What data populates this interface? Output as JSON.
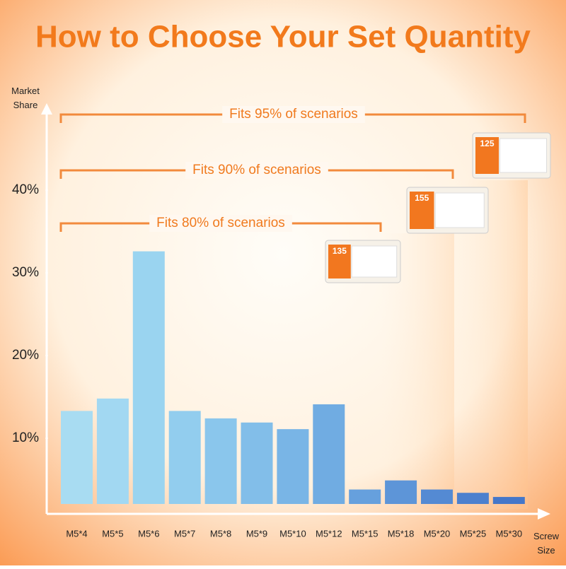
{
  "chart_data": {
    "type": "bar",
    "title": "How to Choose Your Set Quantity",
    "y_label": "Market Share",
    "x_label": "Screw Size",
    "categories": [
      "M5*4",
      "M5*5",
      "M5*6",
      "M5*7",
      "M5*8",
      "M5*9",
      "M5*10",
      "M5*12",
      "M5*15",
      "M5*18",
      "M5*20",
      "M5*25",
      "M5*30"
    ],
    "values": [
      13.3,
      14.8,
      32.6,
      13.3,
      12.4,
      11.9,
      11.1,
      14.1,
      3.8,
      4.9,
      3.8,
      3.4,
      2.9
    ],
    "colors": [
      "#a8dcf2",
      "#a2d8f2",
      "#9ad4f0",
      "#92cdee",
      "#8ac6ec",
      "#82bee9",
      "#79b5e6",
      "#70ace2",
      "#66a0dd",
      "#5d95d8",
      "#548ad3",
      "#4c80ce",
      "#4577c9"
    ],
    "ylim": [
      0,
      50
    ],
    "yticks": [
      {
        "value": 10,
        "label": "10%"
      },
      {
        "value": 20,
        "label": "20%"
      },
      {
        "value": 30,
        "label": "30%"
      },
      {
        "value": 40,
        "label": "40%"
      }
    ],
    "annotations": [
      "Fits 95% of scenarios",
      "Fits 90% of scenarios",
      "Fits 80% of scenarios"
    ],
    "kits": [
      "125",
      "155",
      "135"
    ]
  }
}
